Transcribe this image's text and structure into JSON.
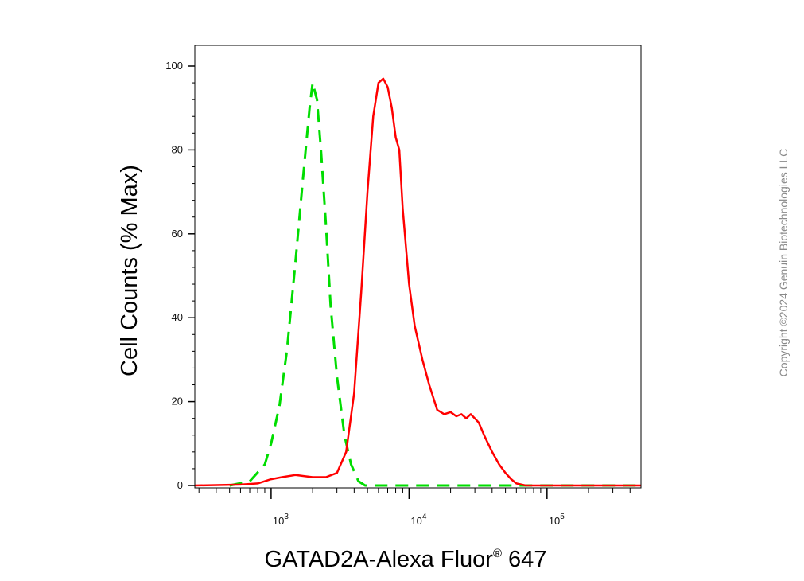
{
  "copyright": "Copyright ©2024 Genuin Biotechnologies LLC",
  "chart_data": {
    "type": "line",
    "title": "",
    "xlabel": "GATAD2A-Alexa Fluor® 647",
    "xlabel_main": "GATAD2A-Alexa Fluor",
    "xlabel_reg": "®",
    "xlabel_suffix": " 647",
    "ylabel": "Cell Counts (% Max)",
    "xscale": "log",
    "xlim": [
      280,
      480000
    ],
    "ylim": [
      0,
      100
    ],
    "yticks": [
      0,
      20,
      40,
      60,
      80,
      100
    ],
    "yticklabels": [
      "0",
      "20",
      "40",
      "60",
      "80",
      "100"
    ],
    "xticks": [
      1000,
      10000,
      100000
    ],
    "xticklabels": [
      {
        "base": "10",
        "exp": "3"
      },
      {
        "base": "10",
        "exp": "4"
      },
      {
        "base": "10",
        "exp": "5"
      }
    ],
    "grid": false,
    "series": [
      {
        "color": "#00dd00",
        "dash": "dashed",
        "x": [
          500,
          700,
          900,
          1000,
          1150,
          1300,
          1500,
          1700,
          1900,
          2000,
          2150,
          2300,
          2500,
          2700,
          3000,
          3400,
          3800,
          4300,
          4800,
          5300,
          6000,
          8000,
          12000,
          20000,
          40000,
          80000,
          200000,
          480000
        ],
        "y": [
          0,
          1,
          5,
          10,
          19,
          32,
          53,
          73,
          90,
          96,
          92,
          80,
          62,
          43,
          26,
          12,
          5,
          1,
          0,
          0,
          0,
          0,
          0,
          0,
          0,
          0,
          0,
          0
        ]
      },
      {
        "color": "#ff0000",
        "dash": "solid",
        "x": [
          280,
          600,
          800,
          1000,
          1200,
          1500,
          2000,
          2500,
          3000,
          3500,
          4000,
          4500,
          5000,
          5500,
          6000,
          6500,
          7000,
          7500,
          8000,
          8500,
          9000,
          10000,
          11000,
          12500,
          14000,
          16000,
          18000,
          20000,
          22000,
          24000,
          26000,
          28000,
          30000,
          32000,
          35000,
          40000,
          45000,
          50000,
          55000,
          60000,
          70000,
          100000,
          200000,
          480000
        ],
        "y": [
          0,
          0.2,
          0.5,
          1.5,
          2,
          2.5,
          2,
          2,
          3,
          8,
          22,
          46,
          70,
          88,
          96,
          97,
          95,
          90,
          83,
          80,
          66,
          48,
          38,
          30,
          24,
          18,
          17,
          17.5,
          16.5,
          17,
          16,
          17,
          16,
          15,
          12,
          8,
          5,
          3,
          1.5,
          0.5,
          0,
          0,
          0,
          0
        ]
      }
    ]
  }
}
